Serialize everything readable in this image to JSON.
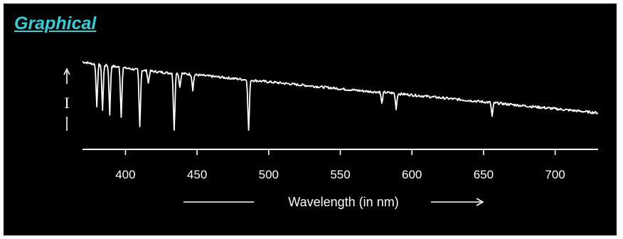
{
  "heading": "Graphical",
  "colors": {
    "background": "#000000",
    "heading": "#2fd0d8",
    "trace": "#ffffff"
  },
  "chart_data": {
    "type": "line",
    "title": "Graphical",
    "xlabel": "Wavelength (in nm)",
    "ylabel": "I",
    "xlim": [
      370,
      730
    ],
    "ylim": [
      0,
      1
    ],
    "grid": false,
    "legend": "none",
    "x_ticks": [
      400,
      450,
      500,
      550,
      600,
      650,
      700
    ],
    "series": [
      {
        "x": [
          370,
          375,
          380,
          390,
          400,
          410,
          420,
          430,
          440,
          450,
          460,
          470,
          480,
          490,
          500,
          510,
          520,
          530,
          540,
          550,
          560,
          570,
          580,
          590,
          600,
          610,
          620,
          630,
          640,
          650,
          660,
          670,
          680,
          690,
          700,
          710,
          720,
          730
        ],
        "y": [
          0.99,
          0.97,
          0.95,
          0.93,
          0.9,
          0.87,
          0.85,
          0.83,
          0.82,
          0.8,
          0.78,
          0.76,
          0.74,
          0.72,
          0.7,
          0.68,
          0.66,
          0.64,
          0.62,
          0.6,
          0.58,
          0.56,
          0.55,
          0.53,
          0.51,
          0.49,
          0.47,
          0.45,
          0.43,
          0.41,
          0.39,
          0.37,
          0.35,
          0.33,
          0.31,
          0.29,
          0.27,
          0.25
        ]
      }
    ],
    "absorption_lines": [
      {
        "x": 380,
        "depth": 0.6
      },
      {
        "x": 384,
        "depth": 0.65
      },
      {
        "x": 389,
        "depth": 0.7
      },
      {
        "x": 397,
        "depth": 0.72
      },
      {
        "x": 410,
        "depth": 0.82
      },
      {
        "x": 416,
        "depth": 0.18
      },
      {
        "x": 434,
        "depth": 0.9
      },
      {
        "x": 438,
        "depth": 0.2
      },
      {
        "x": 447,
        "depth": 0.22
      },
      {
        "x": 486,
        "depth": 0.8
      },
      {
        "x": 579,
        "depth": 0.17
      },
      {
        "x": 589,
        "depth": 0.22
      },
      {
        "x": 656,
        "depth": 0.2
      }
    ]
  }
}
